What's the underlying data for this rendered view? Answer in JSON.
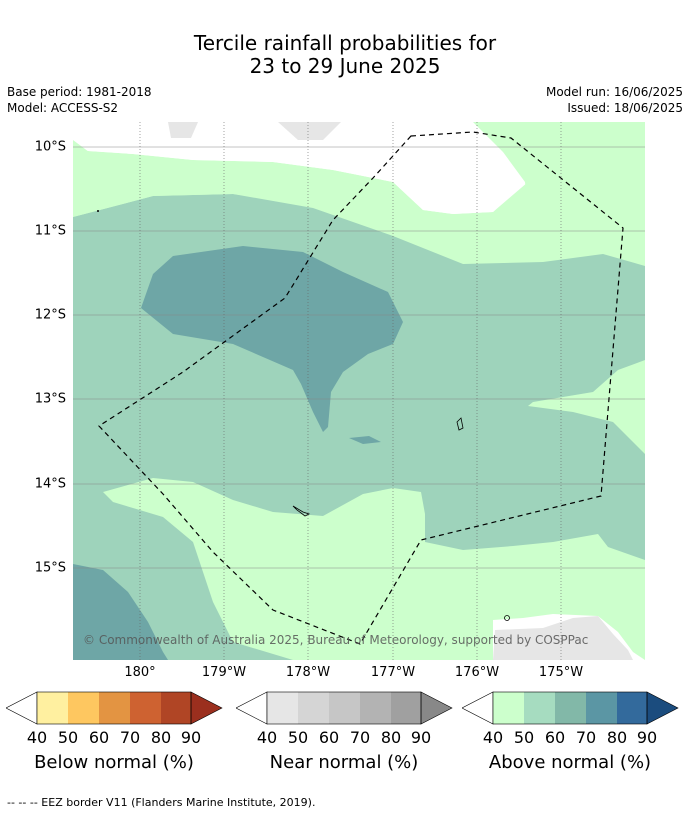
{
  "title": {
    "line1": "Tercile rainfall probabilities for",
    "line2": "23 to 29 June 2025"
  },
  "meta": {
    "base_period": "Base period: 1981-2018",
    "model": "Model: ACCESS-S2",
    "model_run": "Model run: 16/06/2025",
    "issued": "Issued: 18/06/2025"
  },
  "map": {
    "lat_labels": [
      "10°S",
      "11°S",
      "12°S",
      "13°S",
      "14°S",
      "15°S"
    ],
    "lon_labels": [
      "180°",
      "179°W",
      "178°W",
      "177°W",
      "176°W",
      "175°W"
    ],
    "copyright": "© Commonwealth of Australia 2025, Bureau of Meteorology, supported by COSPPac",
    "colors": {
      "above_40": "#ccffcc",
      "above_50": "#9ed3bb",
      "above_60": "#6ea6a6",
      "grey": "#e6e6e6"
    }
  },
  "colorbars": [
    {
      "label": "Below normal (%)",
      "ticks": [
        "40",
        "50",
        "60",
        "70",
        "80",
        "90"
      ],
      "colors": [
        "#fff0a0",
        "#fec760",
        "#e39442",
        "#ce6231",
        "#b04525",
        "#9b2f1e"
      ]
    },
    {
      "label": "Near normal (%)",
      "ticks": [
        "40",
        "50",
        "60",
        "70",
        "80",
        "90"
      ],
      "colors": [
        "#e6e6e6",
        "#d5d5d5",
        "#c6c6c6",
        "#b3b3b3",
        "#a0a0a0",
        "#888888"
      ]
    },
    {
      "label": "Above normal (%)",
      "ticks": [
        "40",
        "50",
        "60",
        "70",
        "80",
        "90"
      ],
      "colors": [
        "#ccffcc",
        "#a6dcc0",
        "#82b8a8",
        "#5b96a4",
        "#336a9c",
        "#1b4c7e"
      ]
    }
  ],
  "legend_note": "--  --  -- EEZ border V11 (Flanders Marine Institute, 2019)."
}
